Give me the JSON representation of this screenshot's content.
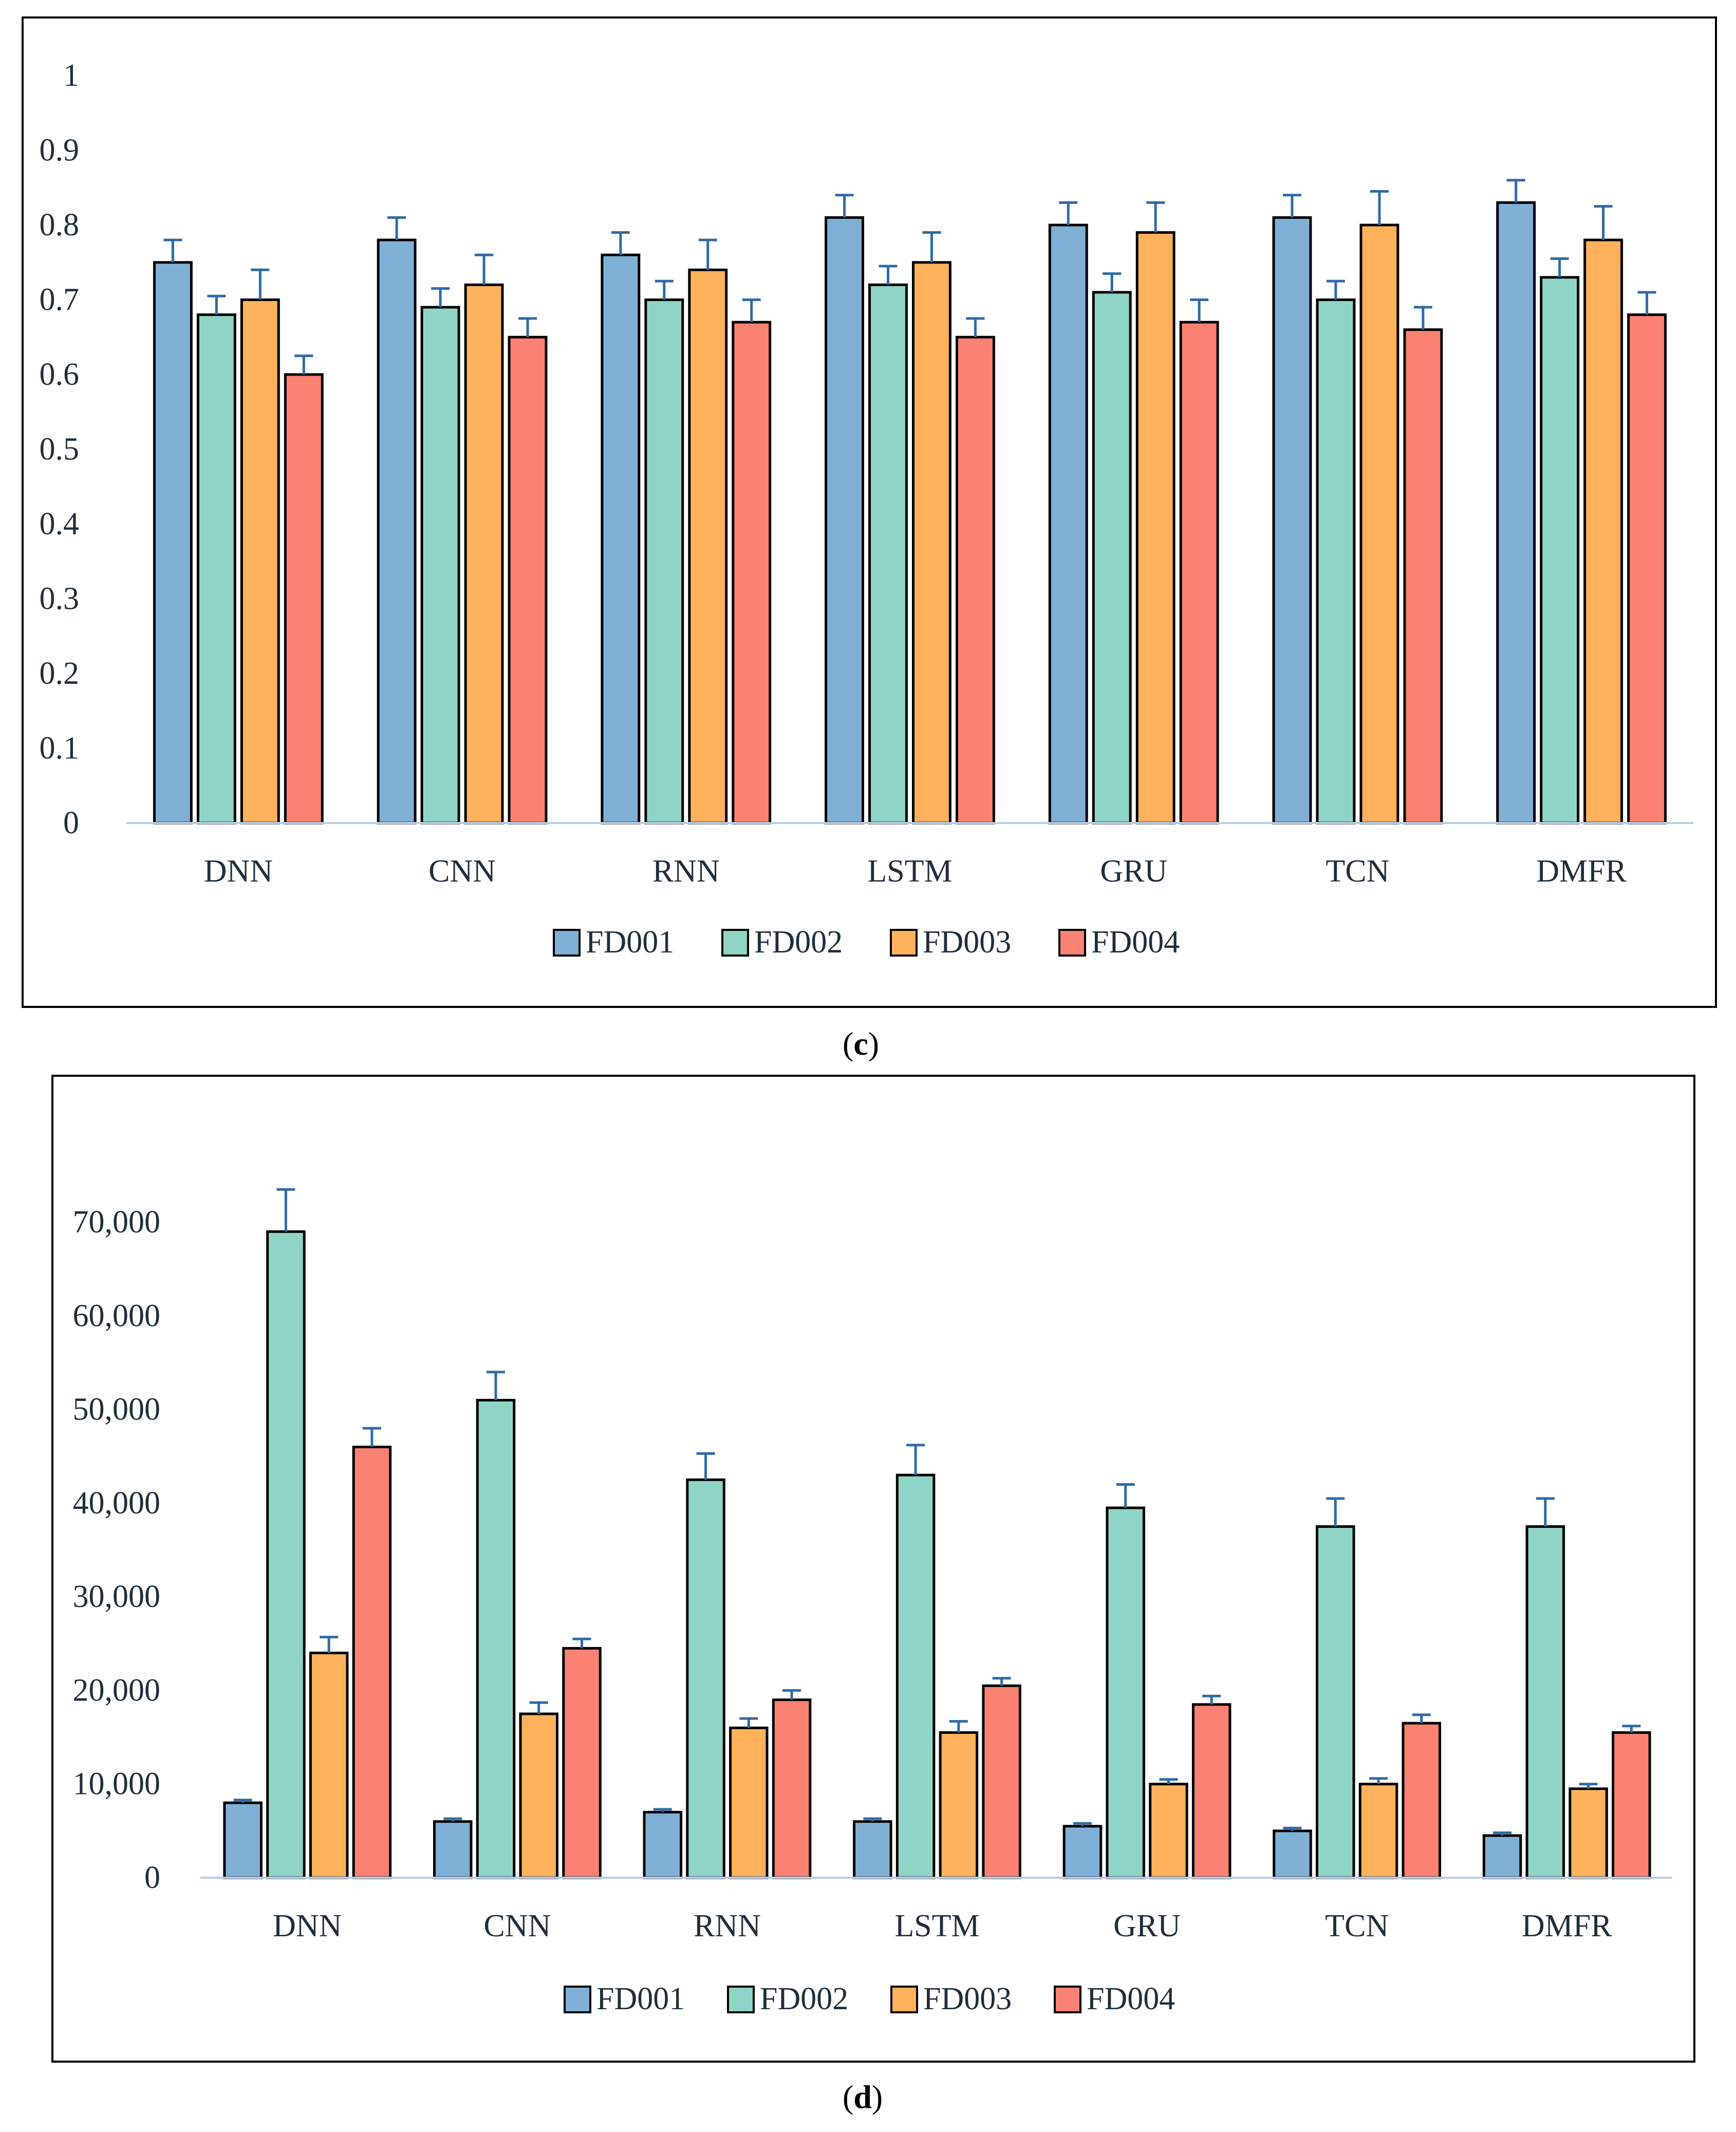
{
  "chart_data": [
    {
      "type": "bar",
      "panel_label": "c",
      "categories": [
        "DNN",
        "CNN",
        "RNN",
        "LSTM",
        "GRU",
        "TCN",
        "DMFR"
      ],
      "yticks": [
        "0",
        "0.1",
        "0.2",
        "0.3",
        "0.4",
        "0.5",
        "0.6",
        "0.7",
        "0.8",
        "0.9",
        "1"
      ],
      "ylim": [
        0,
        1
      ],
      "grid": false,
      "legend_position": "bottom",
      "series": [
        {
          "name": "FD001",
          "color": "#7fb1d6",
          "values": [
            0.75,
            0.78,
            0.76,
            0.81,
            0.8,
            0.81,
            0.83
          ],
          "errors": [
            0.03,
            0.03,
            0.03,
            0.03,
            0.03,
            0.03,
            0.03
          ]
        },
        {
          "name": "FD002",
          "color": "#8ed5c7",
          "values": [
            0.68,
            0.69,
            0.7,
            0.72,
            0.71,
            0.7,
            0.73
          ],
          "errors": [
            0.025,
            0.025,
            0.025,
            0.025,
            0.025,
            0.025,
            0.025
          ]
        },
        {
          "name": "FD003",
          "color": "#ffb15c",
          "values": [
            0.7,
            0.72,
            0.74,
            0.75,
            0.79,
            0.8,
            0.78
          ],
          "errors": [
            0.04,
            0.04,
            0.04,
            0.04,
            0.04,
            0.045,
            0.045
          ]
        },
        {
          "name": "FD004",
          "color": "#fb8172",
          "values": [
            0.6,
            0.65,
            0.67,
            0.65,
            0.67,
            0.66,
            0.68
          ],
          "errors": [
            0.025,
            0.025,
            0.03,
            0.025,
            0.03,
            0.03,
            0.03
          ]
        }
      ]
    },
    {
      "type": "bar",
      "panel_label": "d",
      "categories": [
        "DNN",
        "CNN",
        "RNN",
        "LSTM",
        "GRU",
        "TCN",
        "DMFR"
      ],
      "yticks": [
        "0",
        "10,000",
        "20,000",
        "30,000",
        "40,000",
        "50,000",
        "60,000",
        "70,000"
      ],
      "ylim": [
        0,
        75000
      ],
      "grid": false,
      "legend_position": "bottom",
      "series": [
        {
          "name": "FD001",
          "color": "#7fb1d6",
          "values": [
            8000,
            6000,
            7000,
            6000,
            5500,
            5000,
            4500
          ],
          "errors": [
            300,
            300,
            300,
            300,
            300,
            300,
            300
          ]
        },
        {
          "name": "FD002",
          "color": "#8ed5c7",
          "values": [
            69000,
            51000,
            42500,
            43000,
            39500,
            37500,
            37500
          ],
          "errors": [
            4500,
            3000,
            2800,
            3200,
            2500,
            3000,
            3000
          ]
        },
        {
          "name": "FD003",
          "color": "#ffb15c",
          "values": [
            24000,
            17500,
            16000,
            15500,
            10000,
            10000,
            9500
          ],
          "errors": [
            1700,
            1200,
            1000,
            1200,
            500,
            600,
            500
          ]
        },
        {
          "name": "FD004",
          "color": "#fb8172",
          "values": [
            46000,
            24500,
            19000,
            20500,
            18500,
            16500,
            15500
          ],
          "errors": [
            2000,
            1000,
            1000,
            800,
            900,
            900,
            700
          ]
        }
      ]
    }
  ]
}
